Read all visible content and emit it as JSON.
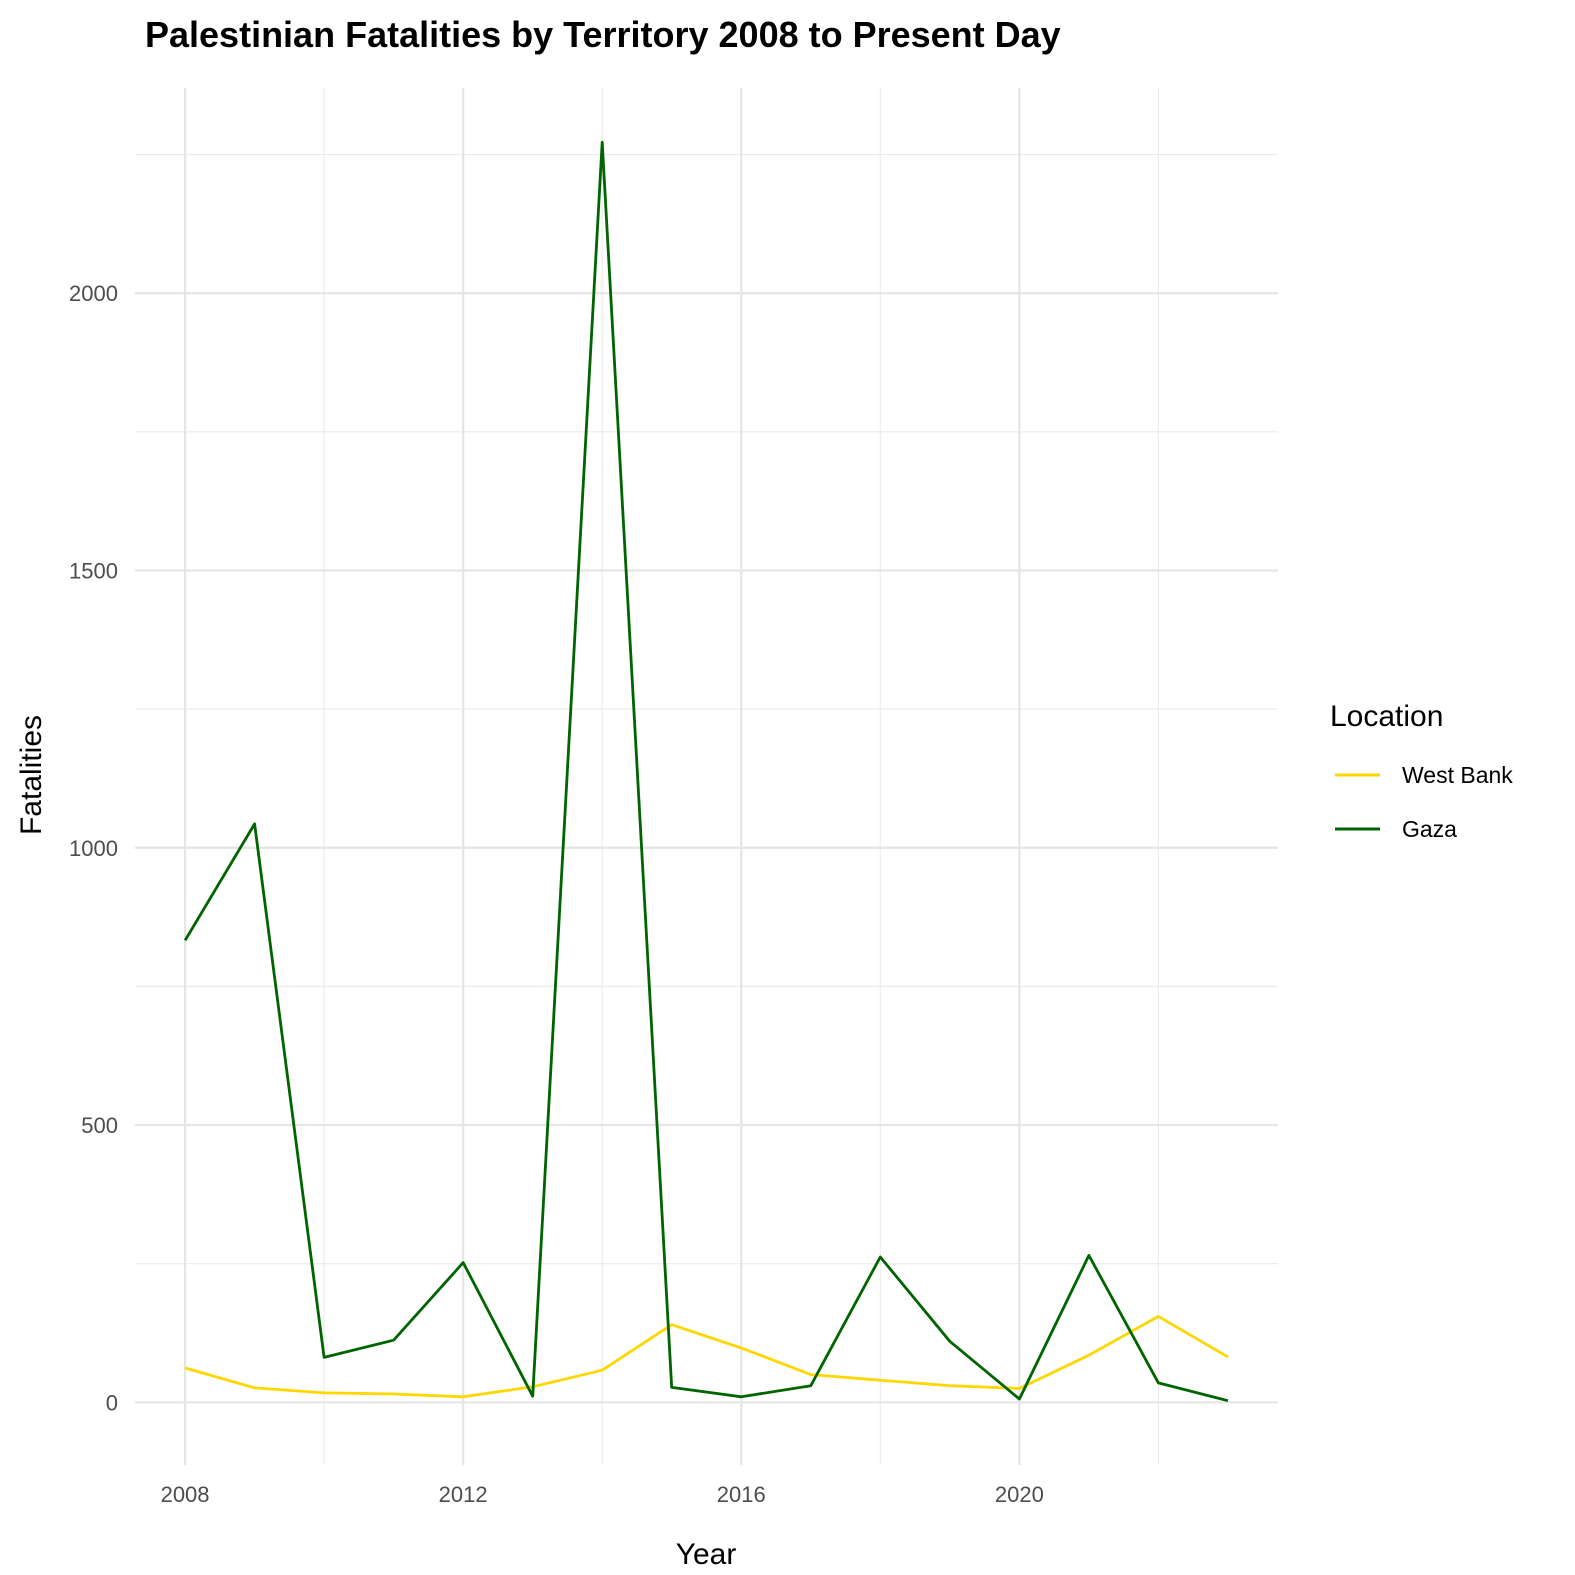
{
  "chart_data": {
    "type": "line",
    "title": "Palestinian Fatalities by Territory 2008 to Present Day",
    "xlabel": "Year",
    "ylabel": "Fatalities",
    "x": [
      2008,
      2009,
      2010,
      2011,
      2012,
      2013,
      2014,
      2015,
      2016,
      2017,
      2018,
      2019,
      2020,
      2021,
      2022,
      2023
    ],
    "xlim": [
      2007.28,
      2023.72
    ],
    "ylim": [
      -113,
      2370
    ],
    "x_ticks": [
      2008,
      2012,
      2016,
      2020
    ],
    "x_tick_labels": [
      "2008",
      "2012",
      "2016",
      "2020"
    ],
    "y_ticks": [
      0,
      500,
      1000,
      1500,
      2000
    ],
    "y_tick_labels": [
      "0",
      "500",
      "1000",
      "1500",
      "2000"
    ],
    "grid": true,
    "legend": {
      "title": "Location",
      "position": "right"
    },
    "series": [
      {
        "name": "West Bank",
        "color": "#FFD700",
        "values": [
          62,
          26,
          17,
          15,
          10,
          28,
          58,
          140,
          98,
          50,
          40,
          30,
          25,
          85,
          155,
          82
        ]
      },
      {
        "name": "Gaza",
        "color": "#006400",
        "values": [
          833,
          1043,
          81,
          112,
          252,
          11,
          2272,
          27,
          10,
          30,
          262,
          110,
          6,
          265,
          35,
          3
        ]
      }
    ]
  }
}
